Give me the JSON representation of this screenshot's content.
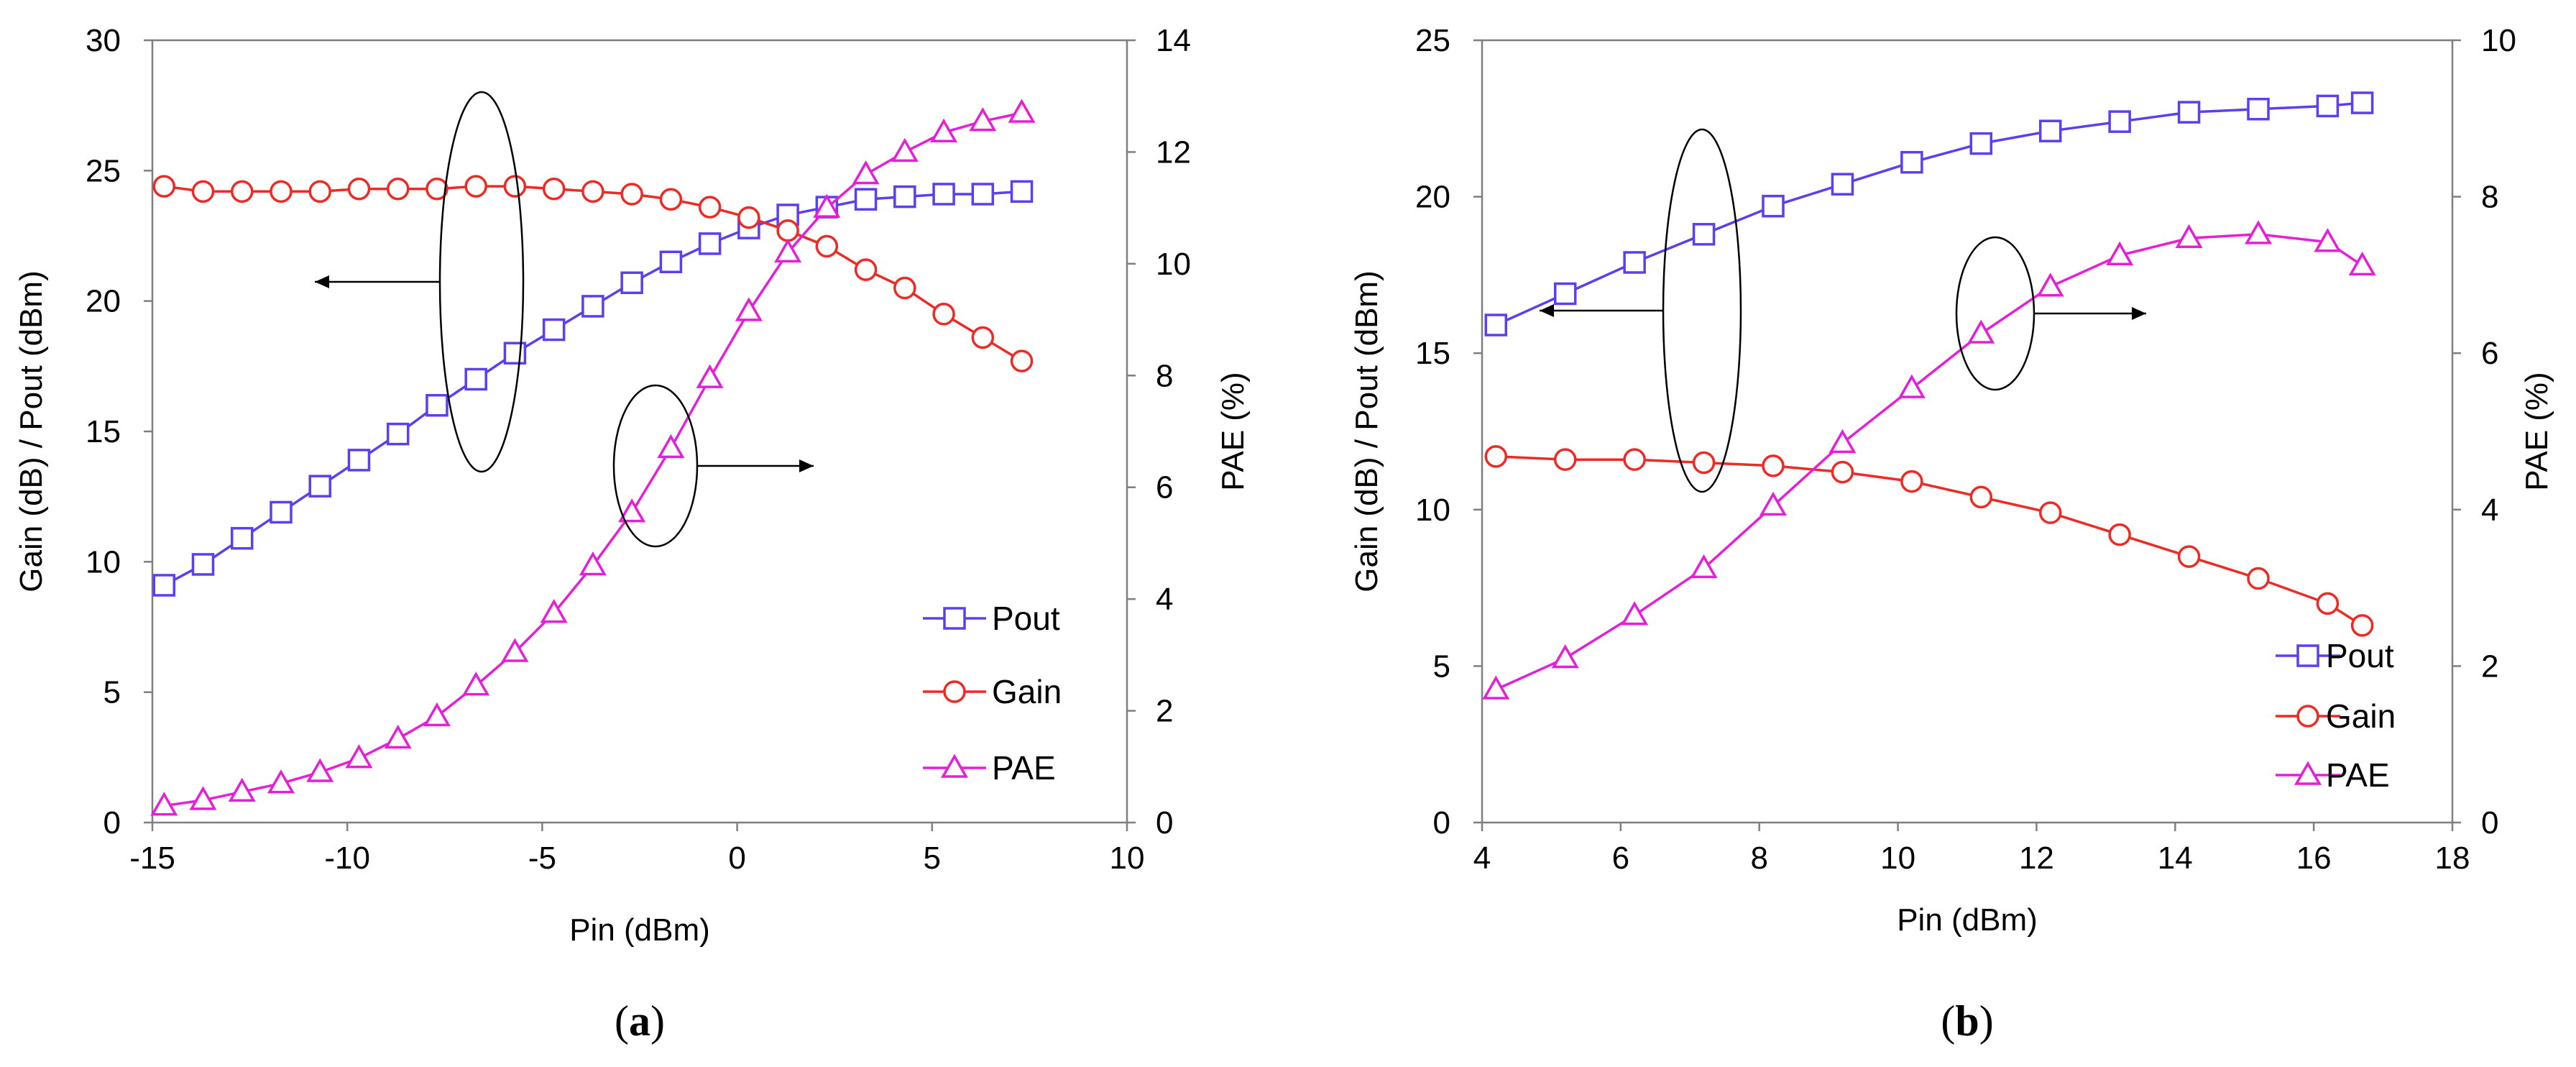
{
  "chart_data": [
    {
      "type": "line",
      "panel_label": "a",
      "xlabel": "Pin (dBm)",
      "ylabel": "Gain (dB) / Pout (dBm)",
      "y2label": "PAE (%)",
      "xlim": [
        -15,
        10
      ],
      "ylim": [
        0,
        30
      ],
      "y2lim": [
        0,
        14
      ],
      "xticks": [
        -15,
        -10,
        -5,
        0,
        5,
        10
      ],
      "yticks": [
        0,
        5,
        10,
        15,
        20,
        25,
        30
      ],
      "y2ticks": [
        0,
        2,
        4,
        6,
        8,
        10,
        12,
        14
      ],
      "x": [
        -14.7,
        -13.7,
        -12.7,
        -11.7,
        -10.7,
        -9.7,
        -8.7,
        -7.7,
        -6.7,
        -5.7,
        -4.7,
        -3.7,
        -2.7,
        -1.7,
        -0.7,
        0.3,
        1.3,
        2.3,
        3.3,
        4.3,
        5.3,
        6.3,
        7.3
      ],
      "series": [
        {
          "name": "Pout",
          "axis": "left",
          "color": "#5b3ff0",
          "marker": "square",
          "values": [
            9.1,
            9.9,
            10.9,
            11.9,
            12.9,
            13.9,
            14.9,
            16.0,
            17.0,
            18.0,
            18.9,
            19.8,
            20.7,
            21.5,
            22.2,
            22.8,
            23.3,
            23.6,
            23.9,
            24.0,
            24.1,
            24.1,
            24.2
          ]
        },
        {
          "name": "Gain",
          "axis": "left",
          "color": "#ee2a24",
          "marker": "circle",
          "values": [
            24.4,
            24.2,
            24.2,
            24.2,
            24.2,
            24.3,
            24.3,
            24.3,
            24.4,
            24.4,
            24.3,
            24.2,
            24.1,
            23.9,
            23.6,
            23.2,
            22.7,
            22.1,
            21.2,
            20.5,
            19.5,
            18.6,
            17.7
          ]
        },
        {
          "name": "PAE",
          "axis": "right",
          "color": "#e61ed8",
          "marker": "triangle",
          "values": [
            0.3,
            0.4,
            0.55,
            0.7,
            0.9,
            1.15,
            1.5,
            1.9,
            2.45,
            3.05,
            3.75,
            4.6,
            5.55,
            6.7,
            7.95,
            9.15,
            10.2,
            11.0,
            11.6,
            12.0,
            12.35,
            12.55,
            12.7
          ]
        }
      ],
      "annotations": [
        {
          "encloses": "Pout / Gain",
          "arrow": "left"
        },
        {
          "encloses": "PAE",
          "arrow": "right"
        }
      ],
      "legend": "bottom-right",
      "grid": false
    },
    {
      "type": "line",
      "panel_label": "b",
      "xlabel": "Pin (dBm)",
      "ylabel": "Gain (dB) / Pout (dBm)",
      "y2label": "PAE (%)",
      "xlim": [
        4,
        18
      ],
      "ylim": [
        0,
        25
      ],
      "y2lim": [
        0,
        10
      ],
      "xticks": [
        4,
        6,
        8,
        10,
        12,
        14,
        16,
        18
      ],
      "yticks": [
        0,
        5,
        10,
        15,
        20,
        25
      ],
      "y2ticks": [
        0,
        2,
        4,
        6,
        8,
        10
      ],
      "x": [
        4.2,
        5.2,
        6.2,
        7.2,
        8.2,
        9.2,
        10.2,
        11.2,
        12.2,
        13.2,
        14.2,
        15.2,
        16.2,
        16.7
      ],
      "series": [
        {
          "name": "Pout",
          "axis": "left",
          "color": "#5b3ff0",
          "marker": "square",
          "values": [
            15.9,
            16.9,
            17.9,
            18.8,
            19.7,
            20.4,
            21.1,
            21.7,
            22.1,
            22.4,
            22.7,
            22.8,
            22.9,
            23.0
          ]
        },
        {
          "name": "Gain",
          "axis": "left",
          "color": "#ee2a24",
          "marker": "circle",
          "values": [
            11.7,
            11.6,
            11.6,
            11.5,
            11.4,
            11.2,
            10.9,
            10.4,
            9.9,
            9.2,
            8.5,
            7.8,
            7.0,
            6.3
          ]
        },
        {
          "name": "PAE",
          "axis": "right",
          "color": "#e61ed8",
          "marker": "triangle",
          "values": [
            1.7,
            2.1,
            2.65,
            3.25,
            4.05,
            4.85,
            5.55,
            6.25,
            6.85,
            7.25,
            7.47,
            7.52,
            7.42,
            7.12
          ]
        }
      ],
      "annotations": [
        {
          "encloses": "Pout / Gain",
          "arrow": "left"
        },
        {
          "encloses": "PAE",
          "arrow": "right"
        }
      ],
      "legend": "bottom-right",
      "grid": false
    }
  ]
}
